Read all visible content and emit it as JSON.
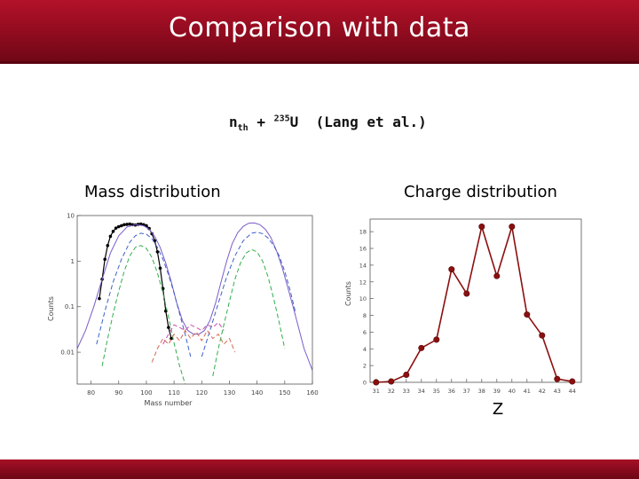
{
  "slide": {
    "title": "Comparison with data",
    "reaction": {
      "projectile": "n",
      "projectile_sub": "th",
      "plus": "+",
      "mass_number": "235",
      "element": "U",
      "reference": "(Lang et al.)"
    },
    "colors": {
      "header": "#8e0b1e",
      "footer": "#7a0a1a",
      "marker": "#8b0f0f"
    }
  },
  "chart_data": [
    {
      "type": "line",
      "title": "Mass distribution",
      "xlabel": "Mass number",
      "ylabel": "Counts",
      "xlim": [
        75,
        160
      ],
      "yscale": "log",
      "ylim": [
        0.002,
        10
      ],
      "xticks": [
        "80",
        "90",
        "100",
        "110",
        "120",
        "130",
        "140",
        "150",
        "160"
      ],
      "yticks": [
        "10",
        "1",
        "0.1",
        "0.01"
      ],
      "grid": false,
      "series": [
        {
          "color": "#000000",
          "style": "points",
          "x": [
            83,
            84,
            85,
            86,
            87,
            88,
            89,
            90,
            91,
            92,
            93,
            94,
            95,
            96,
            97,
            98,
            99,
            100,
            101,
            102,
            103,
            104,
            105,
            106,
            107,
            108,
            109
          ],
          "y": [
            0.15,
            0.4,
            1.1,
            2.2,
            3.5,
            4.5,
            5.3,
            5.7,
            6.0,
            6.3,
            6.4,
            6.5,
            6.3,
            6.2,
            6.4,
            6.5,
            6.3,
            6.0,
            5.2,
            4.0,
            2.8,
            1.6,
            0.7,
            0.25,
            0.08,
            0.035,
            0.02
          ]
        },
        {
          "color": "#7b5cc9",
          "style": "line",
          "x": [
            75,
            78,
            81,
            84,
            87,
            90,
            93,
            96,
            99,
            101,
            103,
            105,
            107,
            109,
            111,
            113,
            115,
            117,
            119,
            121,
            123,
            125,
            127,
            129,
            131,
            133,
            135,
            137,
            139,
            141,
            143,
            145,
            147,
            149,
            151,
            153,
            155,
            157,
            160
          ],
          "y": [
            0.012,
            0.03,
            0.1,
            0.4,
            1.5,
            3.6,
            5.6,
            6.3,
            6.0,
            5.0,
            3.5,
            2.0,
            0.9,
            0.35,
            0.12,
            0.05,
            0.03,
            0.025,
            0.025,
            0.03,
            0.05,
            0.12,
            0.35,
            1.0,
            2.4,
            4.2,
            5.8,
            6.8,
            6.9,
            6.3,
            5.0,
            3.3,
            1.7,
            0.75,
            0.28,
            0.1,
            0.035,
            0.012,
            0.004
          ]
        },
        {
          "color": "#3d5fc9",
          "style": "dashed",
          "x": [
            82,
            85,
            88,
            91,
            94,
            96,
            98,
            100,
            102,
            104,
            106,
            108,
            110,
            112,
            114,
            116
          ],
          "y": [
            0.015,
            0.08,
            0.35,
            1.1,
            2.6,
            3.6,
            4.1,
            3.9,
            3.1,
            2.0,
            1.1,
            0.5,
            0.2,
            0.07,
            0.025,
            0.008
          ]
        },
        {
          "color": "#3d5fc9",
          "style": "dashed",
          "x": [
            120,
            123,
            126,
            129,
            132,
            135,
            138,
            140,
            142,
            144,
            146,
            148,
            150,
            152,
            154
          ],
          "y": [
            0.008,
            0.03,
            0.12,
            0.45,
            1.3,
            2.8,
            4.1,
            4.3,
            4.0,
            3.2,
            2.2,
            1.3,
            0.6,
            0.22,
            0.07
          ]
        },
        {
          "color": "#2fae4a",
          "style": "dashed",
          "x": [
            84,
            86,
            88,
            90,
            92,
            94,
            96,
            98,
            100,
            102,
            104,
            106,
            108,
            110,
            112,
            114
          ],
          "y": [
            0.005,
            0.02,
            0.07,
            0.22,
            0.6,
            1.3,
            2.0,
            2.2,
            1.9,
            1.2,
            0.55,
            0.2,
            0.06,
            0.016,
            0.005,
            0.002
          ]
        },
        {
          "color": "#2fae4a",
          "style": "dashed",
          "x": [
            124,
            126,
            128,
            130,
            132,
            134,
            136,
            138,
            140,
            142,
            144,
            146,
            148,
            150
          ],
          "y": [
            0.003,
            0.012,
            0.04,
            0.13,
            0.4,
            0.9,
            1.5,
            1.8,
            1.6,
            1.0,
            0.45,
            0.15,
            0.045,
            0.012
          ]
        },
        {
          "color": "#d4694f",
          "style": "dashed",
          "x": [
            102,
            104,
            106,
            108,
            110,
            112,
            114,
            116,
            118,
            120,
            122,
            124,
            126,
            128,
            130,
            132
          ],
          "y": [
            0.006,
            0.012,
            0.02,
            0.015,
            0.025,
            0.018,
            0.03,
            0.02,
            0.028,
            0.018,
            0.03,
            0.02,
            0.025,
            0.015,
            0.02,
            0.01
          ]
        },
        {
          "color": "#c94fa8",
          "style": "dashed",
          "x": [
            106,
            108,
            110,
            112,
            114,
            116,
            118,
            120,
            122,
            124,
            126,
            128
          ],
          "y": [
            0.015,
            0.025,
            0.04,
            0.035,
            0.03,
            0.04,
            0.035,
            0.03,
            0.04,
            0.035,
            0.045,
            0.03
          ]
        }
      ]
    },
    {
      "type": "line",
      "title": "Charge distribution",
      "xlabel": "Z",
      "ylabel": "Counts",
      "x": [
        31,
        32,
        33,
        34,
        35,
        36,
        37,
        38,
        39,
        40,
        41,
        42,
        43,
        44
      ],
      "y": [
        0,
        0.1,
        0.9,
        4.1,
        5.1,
        13.5,
        10.6,
        18.6,
        12.7,
        18.6,
        8.1,
        5.6,
        0.4,
        0.1
      ],
      "xticks": [
        "31",
        "32",
        "33",
        "34",
        "35",
        "36",
        "37",
        "38",
        "39",
        "40",
        "41",
        "42",
        "43",
        "44"
      ],
      "yticks": [
        "0",
        "2",
        "4",
        "6",
        "8",
        "10",
        "12",
        "14",
        "16",
        "18"
      ],
      "xlim": [
        30.6,
        44.6
      ],
      "ylim": [
        0,
        19.5
      ],
      "color": "#8b0f0f",
      "grid": false
    }
  ]
}
